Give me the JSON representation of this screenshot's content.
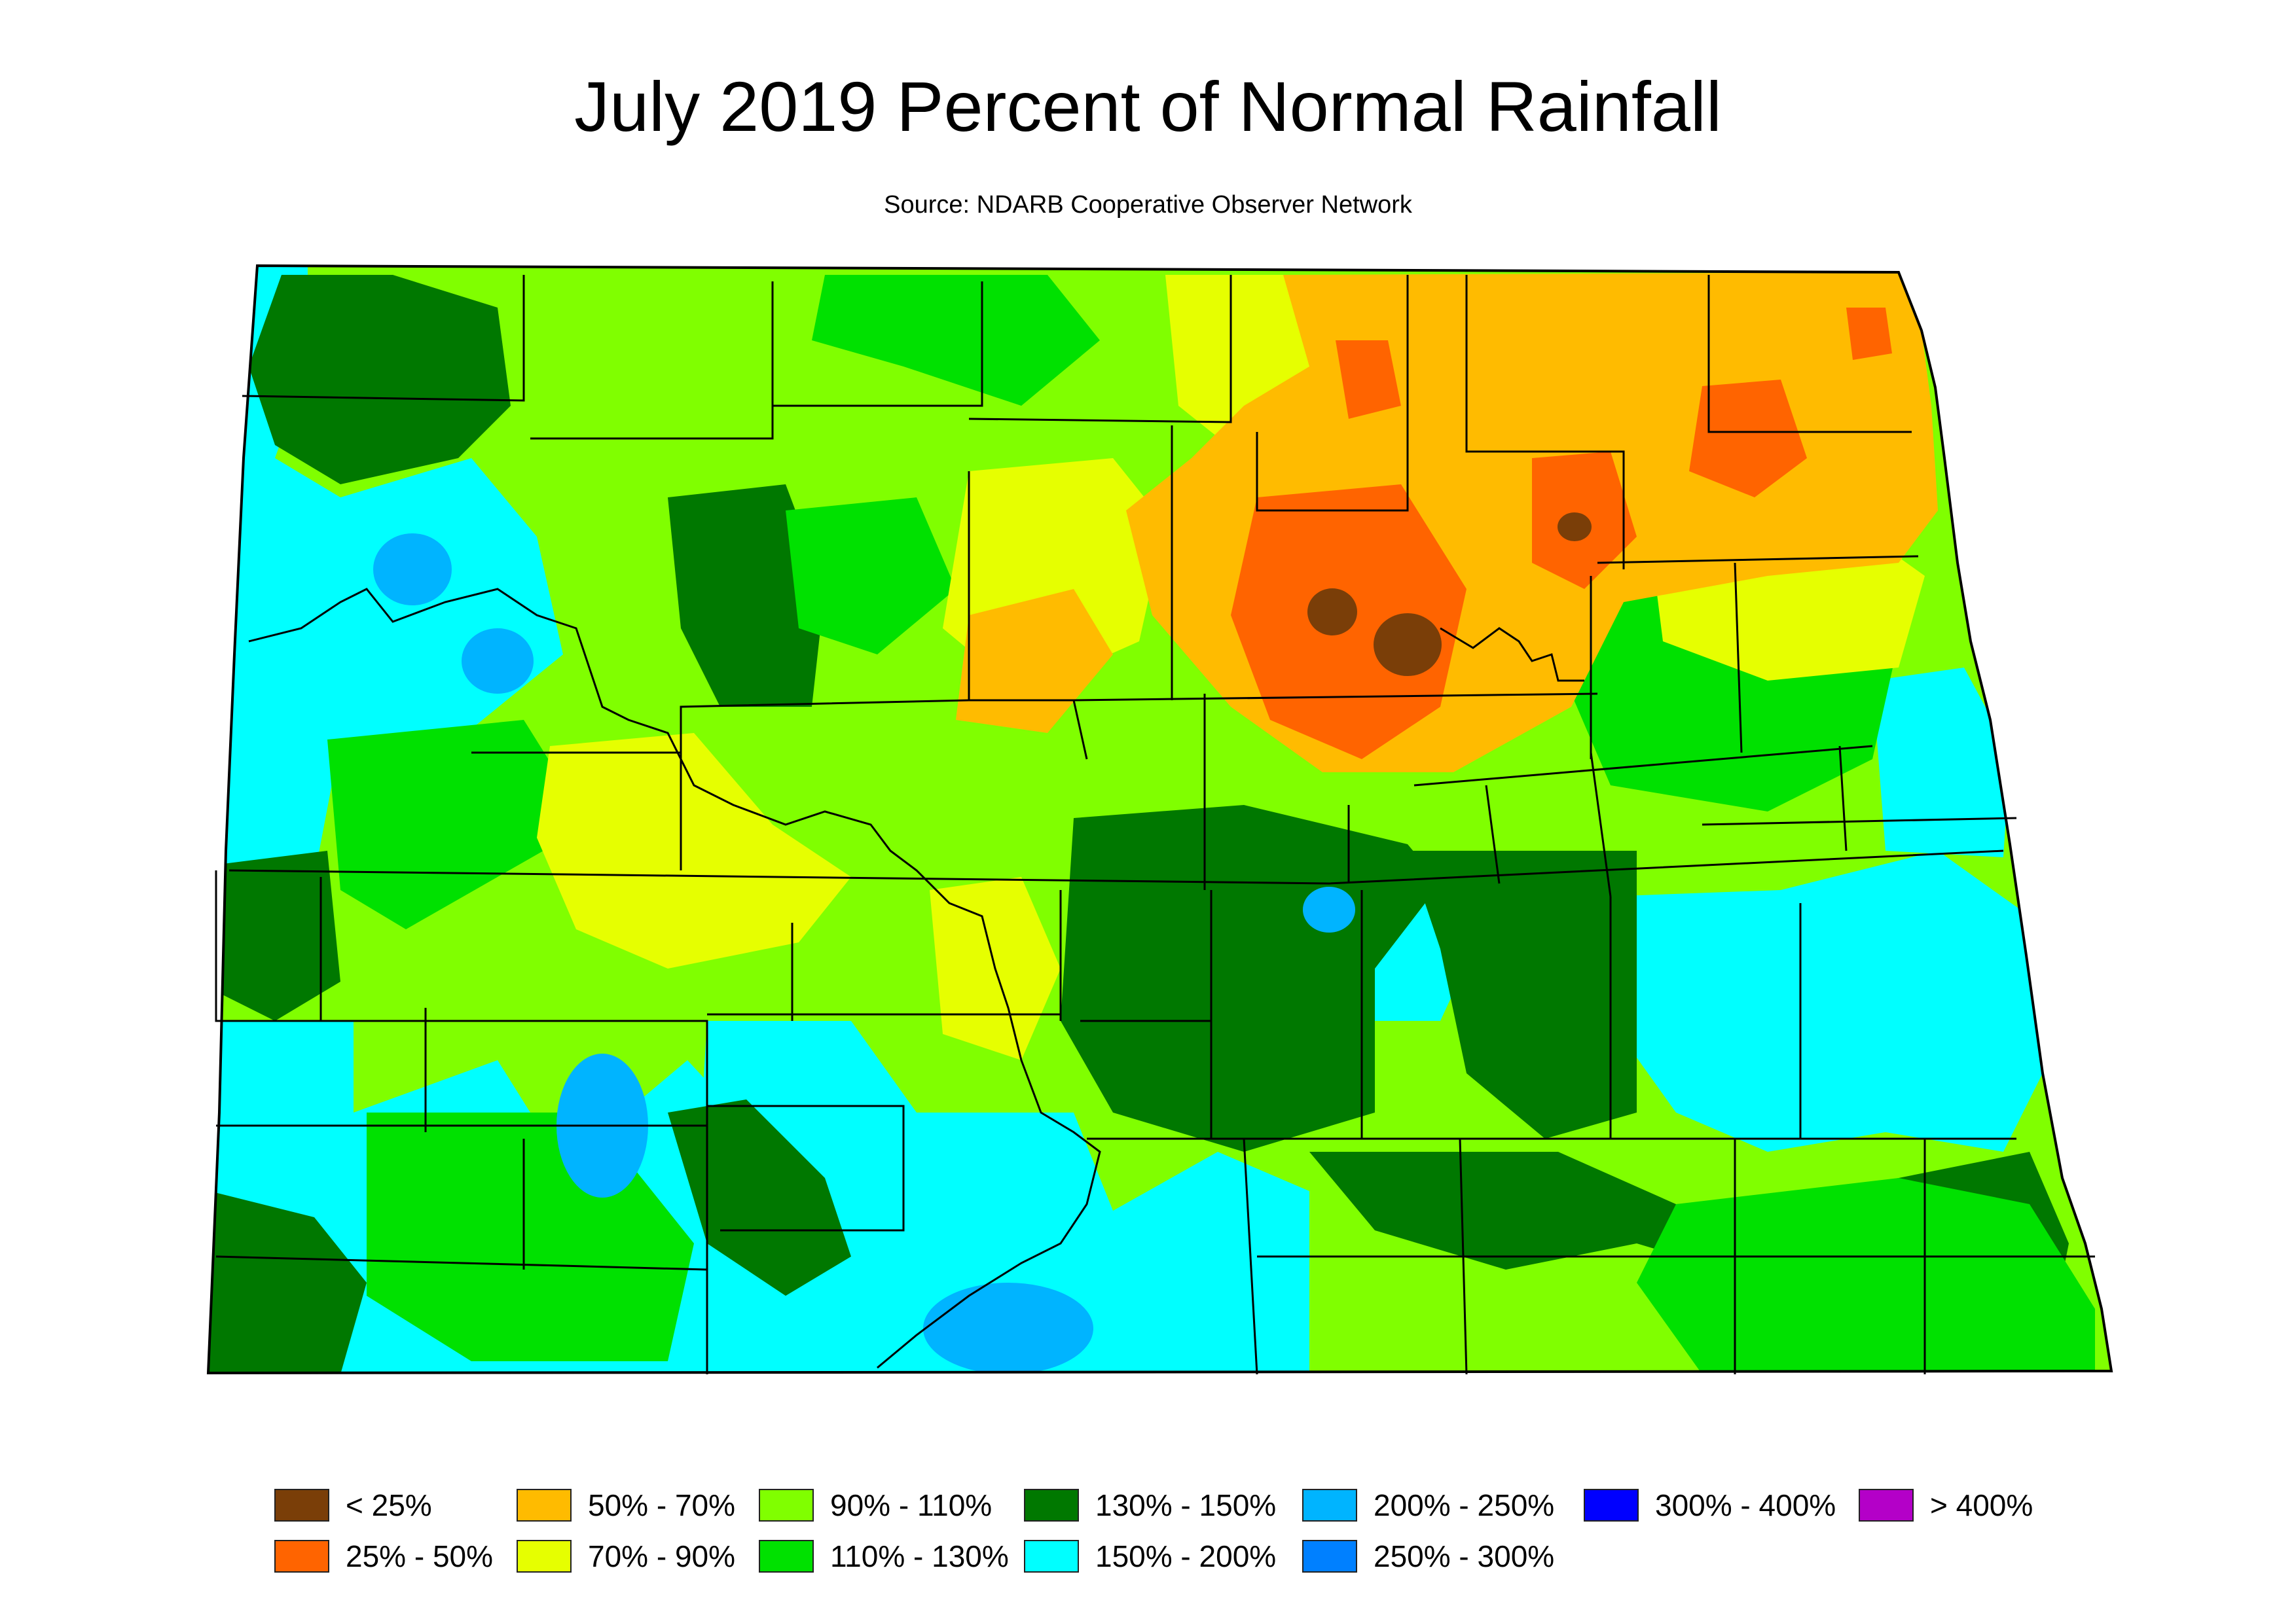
{
  "title": "July 2019 Percent of Normal Rainfall",
  "subtitle": "Source: NDARB Cooperative Observer Network",
  "colors": {
    "lt25": "#7a3e08",
    "c25_50": "#ff6400",
    "c50_70": "#ffbb00",
    "c70_90": "#e6ff00",
    "c90_110": "#80ff00",
    "c110_130": "#00e100",
    "c130_150": "#007800",
    "c150_200": "#00ffff",
    "c200_250": "#00b4ff",
    "c250_300": "#0080ff",
    "c300_400": "#0000ff",
    "gt400": "#b400c8"
  },
  "legend": [
    {
      "label": "< 25%",
      "color": "#7a3e08"
    },
    {
      "label": "25% - 50%",
      "color": "#ff6400"
    },
    {
      "label": "50% - 70%",
      "color": "#ffbb00"
    },
    {
      "label": "70% - 90%",
      "color": "#e6ff00"
    },
    {
      "label": "90% - 110%",
      "color": "#80ff00"
    },
    {
      "label": "110% - 130%",
      "color": "#00e100"
    },
    {
      "label": "130% - 150%",
      "color": "#007800"
    },
    {
      "label": "150% - 200%",
      "color": "#00ffff"
    },
    {
      "label": "200% - 250%",
      "color": "#00b4ff"
    },
    {
      "label": "250% - 300%",
      "color": "#0080ff"
    },
    {
      "label": "300% - 400%",
      "color": "#0000ff"
    },
    {
      "label": "> 400%",
      "color": "#b400c8"
    }
  ]
}
